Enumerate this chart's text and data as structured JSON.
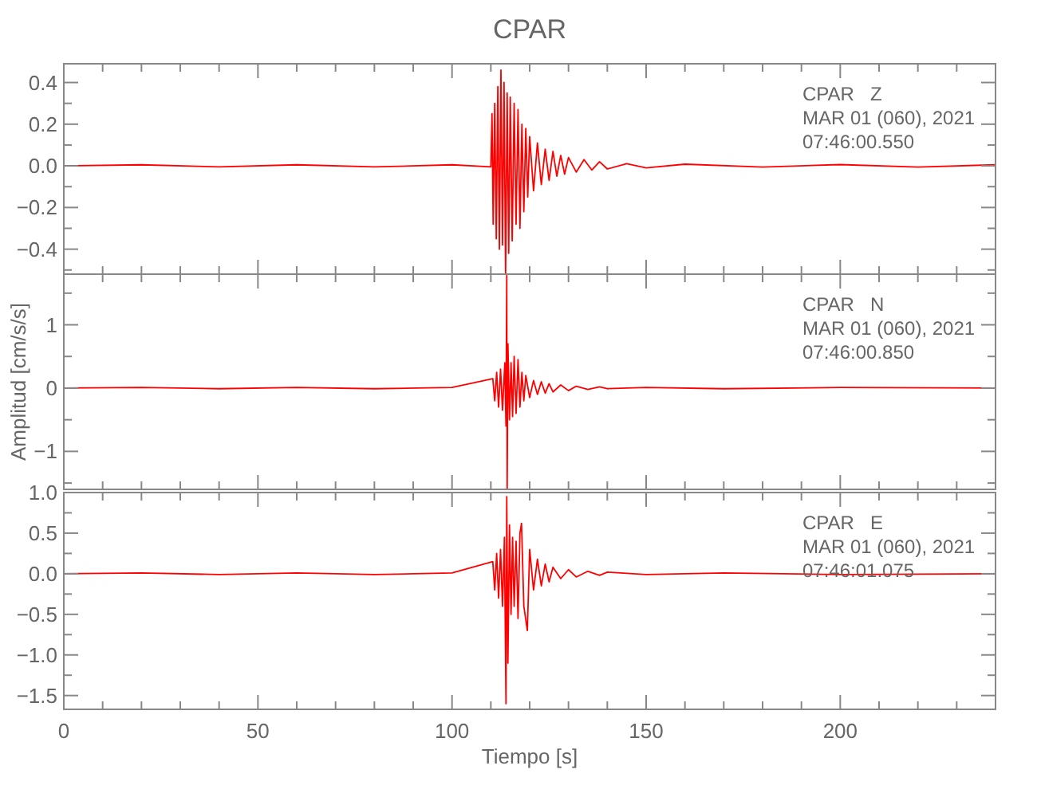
{
  "chart_data": [
    {
      "type": "line",
      "title": "CPAR",
      "tick_labels": "y",
      "annotations": [
        "CPAR   Z",
        "MAR 01 (060), 2021",
        "07:46:00.550"
      ],
      "xlim": [
        0,
        240
      ],
      "ylim": [
        -0.52,
        0.49
      ],
      "xticks": [
        0,
        {
          "value": 10,
          "label": null
        },
        {
          "value": 20,
          "label": null
        },
        {
          "value": 30,
          "label": null
        },
        {
          "value": 40,
          "label": null
        },
        50,
        {
          "value": 60,
          "label": null
        },
        {
          "value": 70,
          "label": null
        },
        {
          "value": 80,
          "label": null
        },
        {
          "value": 90,
          "label": null
        },
        100,
        {
          "value": 110,
          "label": null
        },
        {
          "value": 120,
          "label": null
        },
        {
          "value": 130,
          "label": null
        },
        {
          "value": 140,
          "label": null
        },
        150,
        {
          "value": 160,
          "label": null
        },
        {
          "value": 170,
          "label": null
        },
        {
          "value": 180,
          "label": null
        },
        {
          "value": 190,
          "label": null
        },
        200,
        {
          "value": 210,
          "label": null
        },
        {
          "value": 220,
          "label": null
        },
        {
          "value": 230,
          "label": null
        }
      ],
      "yticks": [
        {
          "value": -0.5,
          "label": null
        },
        {
          "value": -0.4,
          "label": "−0.4"
        },
        {
          "value": -0.3,
          "label": null
        },
        {
          "value": -0.2,
          "label": "−0.2"
        },
        {
          "value": -0.1,
          "label": null
        },
        {
          "value": 0,
          "label": "0.0"
        },
        {
          "value": 0.1,
          "label": null
        },
        {
          "value": 0.2,
          "label": "0.2"
        },
        {
          "value": 0.3,
          "label": null
        },
        {
          "value": 0.4,
          "label": "0.4"
        }
      ],
      "series": [
        {
          "color": "#ff0000",
          "x": [
            0,
            20,
            40,
            60,
            80,
            100,
            110,
            110.3,
            110.6,
            111,
            111.4,
            111.8,
            112.2,
            112.6,
            113,
            113.4,
            113.8,
            114.2,
            114.6,
            115,
            115.5,
            116,
            116.5,
            117,
            117.5,
            118,
            118.5,
            119,
            119.5,
            120,
            121,
            122,
            123,
            124,
            125,
            126,
            127,
            128,
            129,
            130,
            132,
            134,
            136,
            138,
            140,
            145,
            150,
            160,
            180,
            200,
            220,
            240
          ],
          "values": [
            0,
            0.005,
            -0.005,
            0.005,
            -0.005,
            0.005,
            -0.005,
            0.25,
            -0.28,
            0.3,
            -0.35,
            0.38,
            -0.4,
            0.46,
            -0.38,
            0.4,
            -0.52,
            0.35,
            -0.42,
            0.33,
            -0.36,
            0.3,
            -0.28,
            0.27,
            -0.3,
            0.2,
            -0.22,
            0.18,
            -0.15,
            0.14,
            -0.12,
            0.11,
            -0.09,
            0.08,
            -0.07,
            0.07,
            -0.05,
            0.05,
            -0.04,
            0.04,
            -0.03,
            0.03,
            -0.02,
            0.02,
            -0.015,
            0.01,
            -0.01,
            0.008,
            -0.006,
            0.006,
            -0.006,
            0.005
          ]
        }
      ]
    },
    {
      "type": "line",
      "ylabel": "Amplitud [cm/s/s]",
      "tick_labels": "y",
      "annotations": [
        "CPAR   N",
        "MAR 01 (060), 2021",
        "07:46:00.850"
      ],
      "xlim": [
        0,
        240
      ],
      "ylim": [
        -1.6,
        1.8
      ],
      "xticks": [
        0,
        {
          "value": 10,
          "label": null
        },
        {
          "value": 20,
          "label": null
        },
        {
          "value": 30,
          "label": null
        },
        {
          "value": 40,
          "label": null
        },
        50,
        {
          "value": 60,
          "label": null
        },
        {
          "value": 70,
          "label": null
        },
        {
          "value": 80,
          "label": null
        },
        {
          "value": 90,
          "label": null
        },
        100,
        {
          "value": 110,
          "label": null
        },
        {
          "value": 120,
          "label": null
        },
        {
          "value": 130,
          "label": null
        },
        {
          "value": 140,
          "label": null
        },
        150,
        {
          "value": 160,
          "label": null
        },
        {
          "value": 170,
          "label": null
        },
        {
          "value": 180,
          "label": null
        },
        {
          "value": 190,
          "label": null
        },
        200,
        {
          "value": 210,
          "label": null
        },
        {
          "value": 220,
          "label": null
        },
        {
          "value": 230,
          "label": null
        }
      ],
      "yticks": [
        {
          "value": -1.5,
          "label": null
        },
        {
          "value": -1,
          "label": "−1"
        },
        {
          "value": -0.5,
          "label": null
        },
        {
          "value": 0,
          "label": "0"
        },
        {
          "value": 0.5,
          "label": null
        },
        {
          "value": 1,
          "label": "1"
        },
        {
          "value": 1.5,
          "label": null
        }
      ],
      "series": [
        {
          "color": "#ff0000",
          "x": [
            0,
            20,
            40,
            60,
            80,
            100,
            110.5,
            111,
            111.5,
            112,
            112.5,
            113,
            113.6,
            113.9,
            114.1,
            114.2,
            114.4,
            114.8,
            115.2,
            115.6,
            116,
            116.5,
            117,
            117.5,
            118,
            118.5,
            119,
            120,
            121,
            122,
            123,
            124,
            125,
            126,
            128,
            130,
            132,
            135,
            138,
            140,
            150,
            170,
            200,
            240
          ],
          "values": [
            0,
            0.01,
            -0.01,
            0.01,
            -0.01,
            0.01,
            0.15,
            -0.2,
            0.25,
            -0.3,
            0.3,
            -0.35,
            0.4,
            -0.6,
            1.78,
            -1.6,
            0.7,
            -0.5,
            0.4,
            -0.45,
            0.5,
            -0.4,
            0.45,
            -0.3,
            0.25,
            -0.2,
            0.2,
            -0.15,
            0.12,
            -0.1,
            0.1,
            -0.08,
            0.07,
            -0.06,
            0.05,
            -0.04,
            0.03,
            -0.02,
            0.02,
            -0.01,
            0.01,
            -0.01,
            0.01,
            0
          ]
        }
      ]
    },
    {
      "type": "line",
      "xlabel": "Tiempo [s]",
      "annotations": [
        "CPAR   E",
        "MAR 01 (060), 2021",
        "07:46:01.075"
      ],
      "xlim": [
        0,
        240
      ],
      "ylim": [
        -1.67,
        1.0
      ],
      "xticks": [
        0,
        {
          "value": 10,
          "label": null
        },
        {
          "value": 20,
          "label": null
        },
        {
          "value": 30,
          "label": null
        },
        {
          "value": 40,
          "label": null
        },
        50,
        {
          "value": 60,
          "label": null
        },
        {
          "value": 70,
          "label": null
        },
        {
          "value": 80,
          "label": null
        },
        {
          "value": 90,
          "label": null
        },
        100,
        {
          "value": 110,
          "label": null
        },
        {
          "value": 120,
          "label": null
        },
        {
          "value": 130,
          "label": null
        },
        {
          "value": 140,
          "label": null
        },
        150,
        {
          "value": 160,
          "label": null
        },
        {
          "value": 170,
          "label": null
        },
        {
          "value": 180,
          "label": null
        },
        {
          "value": 190,
          "label": null
        },
        200,
        {
          "value": 210,
          "label": null
        },
        {
          "value": 220,
          "label": null
        },
        {
          "value": 230,
          "label": null
        }
      ],
      "yticks": [
        {
          "value": -1.5,
          "label": "−1.5"
        },
        {
          "value": -1.25,
          "label": null
        },
        {
          "value": -1,
          "label": "−1.0"
        },
        {
          "value": -0.75,
          "label": null
        },
        {
          "value": -0.5,
          "label": "−0.5"
        },
        {
          "value": -0.25,
          "label": null
        },
        {
          "value": 0,
          "label": "0.0"
        },
        {
          "value": 0.25,
          "label": null
        },
        {
          "value": 0.5,
          "label": "0.5"
        },
        {
          "value": 0.75,
          "label": null
        },
        {
          "value": 1,
          "label": "1.0"
        }
      ],
      "series": [
        {
          "color": "#ff0000",
          "x": [
            0,
            20,
            40,
            60,
            80,
            100,
            110.5,
            111,
            111.5,
            112,
            112.5,
            113,
            113.5,
            113.9,
            114.1,
            114.4,
            114.8,
            115.2,
            115.6,
            116,
            116.5,
            117,
            117.5,
            117.9,
            118.5,
            119.4,
            120,
            121,
            122,
            123,
            124,
            125,
            126,
            128,
            130,
            132,
            135,
            138,
            140,
            150,
            170,
            200,
            240
          ],
          "values": [
            0,
            0.01,
            -0.01,
            0.01,
            -0.01,
            0.01,
            0.15,
            -0.2,
            0.25,
            -0.3,
            0.3,
            -0.4,
            0.45,
            -1.6,
            0.95,
            -1.1,
            0.6,
            -0.5,
            0.45,
            -0.4,
            0.4,
            -0.55,
            0.5,
            0.62,
            -0.4,
            -0.7,
            0.3,
            -0.2,
            0.18,
            -0.15,
            0.12,
            -0.1,
            0.08,
            -0.06,
            0.05,
            -0.04,
            0.03,
            -0.02,
            0.02,
            -0.01,
            0.01,
            -0.01,
            0
          ]
        }
      ]
    }
  ]
}
